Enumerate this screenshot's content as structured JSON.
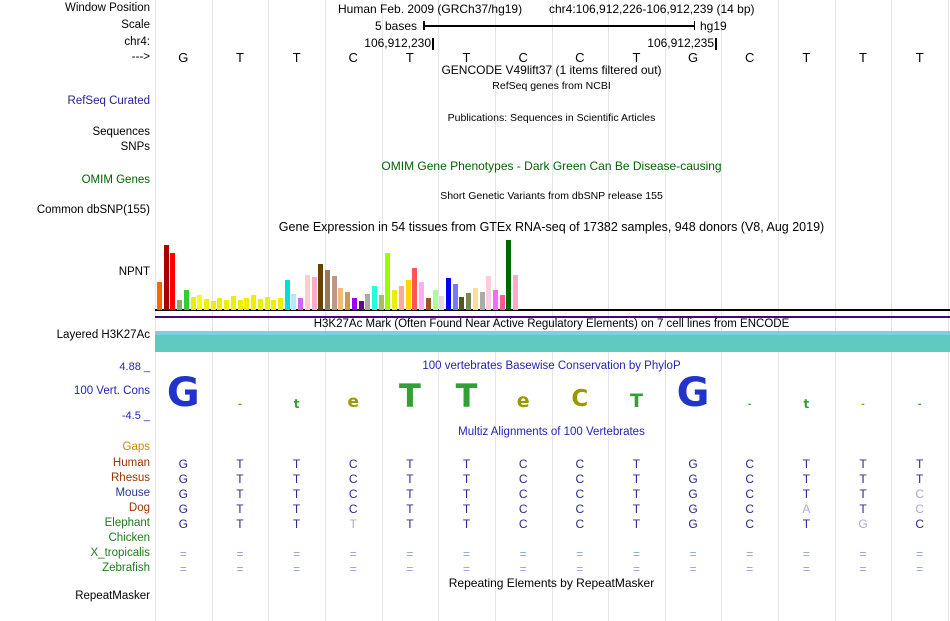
{
  "header": {
    "window_position_label": "Window Position",
    "assembly": "Human Feb. 2009 (GRCh37/hg19)",
    "position": "chr4:106,912,226-106,912,239 (14 bp)",
    "scale_label": "Scale",
    "scale_value": "5 bases",
    "assembly_tag": "hg19",
    "chrom_label": "chr4:",
    "coord_left": "106,912,230",
    "coord_right": "106,912,235",
    "strand_label": "--->"
  },
  "sequence": [
    "G",
    "T",
    "T",
    "C",
    "T",
    "T",
    "C",
    "C",
    "T",
    "G",
    "C",
    "T",
    "T",
    "T"
  ],
  "sidebar": {
    "refseq_curated": "RefSeq Curated",
    "sequences": "Sequences",
    "snps": "SNPs",
    "omim_genes": "OMIM Genes",
    "common_dbsnp": "Common dbSNP(155)",
    "gene": "NPNT",
    "layered_h3k27ac": "Layered H3K27Ac",
    "cons_max": "4.88 _",
    "cons_label": "100 Vert. Cons",
    "cons_min": "-4.5 _",
    "gaps": "Gaps",
    "repeatmasker": "RepeatMasker"
  },
  "titles": {
    "gencode": "GENCODE V49lift37 (1 items filtered out)",
    "gencode_sub": "RefSeq genes from NCBI",
    "publications": "Publications: Sequences in Scientific Articles",
    "omim": "OMIM Gene Phenotypes - Dark Green Can Be Disease-causing",
    "dbsnp": "Short Genetic Variants from dbSNP release 155",
    "gtex": "Gene Expression in 54 tissues from GTEx RNA-seq of 17382 samples, 948 donors (V8, Aug 2019)",
    "h3k27ac": "H3K27Ac Mark (Often Found Near Active Regulatory Elements) on 7 cell lines from ENCODE",
    "phylop": "100 vertebrates Basewise Conservation by PhyloP",
    "multiz": "Multiz Alignments of 100 Vertebrates",
    "repeats": "Repeating Elements by RepeatMasker"
  },
  "colors": {
    "grid": "#e4e4ee",
    "baseline": "#000000",
    "purple_line": "#4b0082",
    "h3k27ac_top": "#7fcfe0",
    "h3k27ac_main": "#5fc9c0",
    "title_blue": "#2424b4",
    "omim_green": "#006400",
    "refseq_navy": "#1f1f8f",
    "gaps_orange": "#cc8800",
    "aln_normal": "#2a2a8f",
    "aln_light": "#a9a9d2",
    "aln_equals": "#8fa0d2"
  },
  "chart_data": [
    {
      "type": "bar",
      "title": "Gene Expression in 54 tissues from GTEx RNA-seq of 17382 samples, 948 donors (V8, Aug 2019)",
      "gene": "NPNT",
      "categories_note": "54 GTEx tissues, unlabeled in image",
      "values": [
        28,
        65,
        57,
        10,
        20,
        13,
        15,
        11,
        9,
        12,
        10,
        14,
        10,
        12,
        15,
        11,
        13,
        10,
        12,
        30,
        16,
        12,
        35,
        33,
        46,
        40,
        34,
        22,
        18,
        12,
        9,
        16,
        24,
        15,
        57,
        20,
        24,
        30,
        42,
        28,
        12,
        20,
        14,
        32,
        26,
        13,
        17,
        22,
        18,
        34,
        20,
        15,
        70,
        35
      ],
      "colors": [
        "#FF6600",
        "#AA0000",
        "#FF0000",
        "#88AA77",
        "#33CC33",
        "#EEEE00",
        "#FFFF00",
        "#EEEE00",
        "#EEEE00",
        "#EEEE00",
        "#EEEE00",
        "#EEEE00",
        "#EEEE00",
        "#EEEE00",
        "#EEEE00",
        "#EEEE00",
        "#EEEE00",
        "#EEEE00",
        "#EEEE00",
        "#00DDDD",
        "#AAEEFF",
        "#CC66FF",
        "#FFCCCC",
        "#FFAACC",
        "#664400",
        "#997755",
        "#BB9988",
        "#EEBB77",
        "#CC9955",
        "#9900FF",
        "#660099",
        "#AAAAAA",
        "#22FFDD",
        "#AABB66",
        "#99FF00",
        "#EEEE00",
        "#FFAA99",
        "#FFD700",
        "#FF5555",
        "#FFAAFF",
        "#995522",
        "#AAFF99",
        "#DDDDDD",
        "#0000FF",
        "#7777FF",
        "#555522",
        "#778855",
        "#FFDD99",
        "#AAAAAA",
        "#FFCCDD",
        "#FF66FF",
        "#FF5599",
        "#006600",
        "#FFAACC"
      ]
    },
    {
      "type": "logo",
      "title": "100 vertebrates Basewise Conservation by PhyloP",
      "ylim": [
        -4.5,
        4.88
      ],
      "letters": [
        {
          "col": 0,
          "char": "G",
          "color": "#2233CC",
          "size": 40
        },
        {
          "col": 1,
          "char": "-",
          "color": "#888800",
          "size": 9
        },
        {
          "col": 2,
          "char": "t",
          "color": "#33A033",
          "size": 12
        },
        {
          "col": 3,
          "char": "e",
          "color": "#999900",
          "size": 17
        },
        {
          "col": 4,
          "char": "T",
          "color": "#33A033",
          "size": 32
        },
        {
          "col": 5,
          "char": "T",
          "color": "#33A033",
          "size": 32
        },
        {
          "col": 6,
          "char": "e",
          "color": "#999900",
          "size": 19
        },
        {
          "col": 7,
          "char": "C",
          "color": "#999900",
          "size": 23
        },
        {
          "col": 8,
          "char": "T",
          "color": "#33A033",
          "size": 19
        },
        {
          "col": 9,
          "char": "G",
          "color": "#2233CC",
          "size": 40
        },
        {
          "col": 10,
          "char": "-",
          "color": "#33A033",
          "size": 9
        },
        {
          "col": 11,
          "char": "t",
          "color": "#33A033",
          "size": 12
        },
        {
          "col": 12,
          "char": "-",
          "color": "#999900",
          "size": 9
        },
        {
          "col": 13,
          "char": "-",
          "color": "#33A033",
          "size": 9
        }
      ]
    },
    {
      "type": "table",
      "title": "Multiz Alignments of 100 Vertebrates",
      "columns": 14,
      "species": [
        {
          "name": "Human",
          "label_color": "#993300",
          "bases": "GTTCTTCCTGCTTT",
          "styles": "nnnnnnnnnnnnnn"
        },
        {
          "name": "Rhesus",
          "label_color": "#993300",
          "bases": "GTTCTTCCTGCTTT",
          "styles": "nnnnnnnnnnnnnn"
        },
        {
          "name": "Mouse",
          "label_color": "#223A8F",
          "bases": "GTTCTTCCTGCTTC",
          "styles": "nnnnnnnnnnnnnl"
        },
        {
          "name": "Dog",
          "label_color": "#993300",
          "bases": "GTTCTTCCTGCATC",
          "styles": "nnnnnnnnnnnlnl"
        },
        {
          "name": "Elephant",
          "label_color": "#1E7A1E",
          "bases": "GTTTTTCCTGCTGC",
          "styles": "nnnlnnnnnnnnln"
        },
        {
          "name": "Chicken",
          "label_color": "#1E7A1E",
          "bases": "              ",
          "styles": "              "
        },
        {
          "name": "X_tropicalis",
          "label_color": "#1E7A1E",
          "bases": "==============",
          "styles": "eeeeeeeeeeeeee"
        },
        {
          "name": "Zebrafish",
          "label_color": "#1E7A1E",
          "bases": "==============",
          "styles": "eeeeeeeeeeeeee"
        }
      ]
    }
  ]
}
